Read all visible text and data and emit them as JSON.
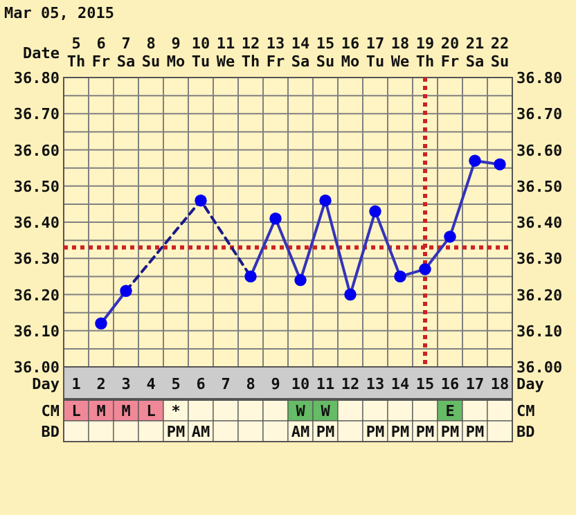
{
  "chart_data": [
    {
      "type": "line",
      "title": "Mar 05, 2015",
      "xlabel": "Day",
      "x2label": "Date",
      "xlim": [
        0.5,
        18.5
      ],
      "xticks": [
        1,
        2,
        3,
        4,
        5,
        6,
        7,
        8,
        9,
        10,
        11,
        12,
        13,
        14,
        15,
        16,
        17,
        18
      ],
      "x2lim": [
        "2015-03-04T12:00",
        "2015-03-22T12:00"
      ],
      "x2ticks": [
        {
          "value": "2015-03-05",
          "label": "5\nTh"
        },
        {
          "value": "2015-03-06",
          "label": "6\nFr"
        },
        {
          "value": "2015-03-07",
          "label": "7\nSa"
        },
        {
          "value": "2015-03-08",
          "label": "8\nSu"
        },
        {
          "value": "2015-03-09",
          "label": "9\nMo"
        },
        {
          "value": "2015-03-10",
          "label": "10\nTu"
        },
        {
          "value": "2015-03-11",
          "label": "11\nWe"
        },
        {
          "value": "2015-03-12",
          "label": "12\nTh"
        },
        {
          "value": "2015-03-13",
          "label": "13\nFr"
        },
        {
          "value": "2015-03-14",
          "label": "14\nSa"
        },
        {
          "value": "2015-03-15",
          "label": "15\nSu"
        },
        {
          "value": "2015-03-16",
          "label": "16\nMo"
        },
        {
          "value": "2015-03-17",
          "label": "17\nTu"
        },
        {
          "value": "2015-03-18",
          "label": "18\nWe"
        },
        {
          "value": "2015-03-19",
          "label": "19\nTh"
        },
        {
          "value": "2015-03-20",
          "label": "20\nFr"
        },
        {
          "value": "2015-03-21",
          "label": "21\nSa"
        },
        {
          "value": "2015-03-22",
          "label": "22\nSu"
        }
      ],
      "ylim": [
        36.0,
        36.8
      ],
      "yticks": [
        {
          "value": 36.0,
          "label": "36.00"
        },
        {
          "value": 36.05,
          "label": null
        },
        {
          "value": 36.1,
          "label": "36.10"
        },
        {
          "value": 36.15,
          "label": null
        },
        {
          "value": 36.2,
          "label": "36.20"
        },
        {
          "value": 36.25,
          "label": null
        },
        {
          "value": 36.3,
          "label": "36.30"
        },
        {
          "value": 36.35,
          "label": null
        },
        {
          "value": 36.4,
          "label": "36.40"
        },
        {
          "value": 36.45,
          "label": null
        },
        {
          "value": 36.5,
          "label": "36.50"
        },
        {
          "value": 36.55,
          "label": null
        },
        {
          "value": 36.6,
          "label": "36.60"
        },
        {
          "value": 36.65,
          "label": null
        },
        {
          "value": 36.7,
          "label": "36.70"
        },
        {
          "value": 36.75,
          "label": null
        },
        {
          "value": 36.8,
          "label": "36.80"
        }
      ],
      "y2lim": [
        36.0,
        36.8
      ],
      "y2ticks": [
        {
          "value": 36.0,
          "label": "36.00"
        },
        {
          "value": 36.1,
          "label": "36.10"
        },
        {
          "value": 36.2,
          "label": "36.20"
        },
        {
          "value": 36.3,
          "label": "36.30"
        },
        {
          "value": 36.4,
          "label": "36.40"
        },
        {
          "value": 36.5,
          "label": "36.50"
        },
        {
          "value": 36.6,
          "label": "36.60"
        },
        {
          "value": 36.7,
          "label": "36.70"
        },
        {
          "value": 36.8,
          "label": "36.80"
        }
      ],
      "grid": true,
      "series": [
        {
          "type": "line",
          "color": "#3333bb",
          "line_style": "solid",
          "marker": "none",
          "x": [
            2,
            3,
            4,
            8,
            9,
            10,
            11,
            12,
            13,
            14,
            15,
            16,
            17,
            18
          ],
          "values": [
            36.12,
            36.21,
            null,
            36.25,
            36.41,
            36.24,
            36.46,
            36.2,
            36.43,
            36.25,
            36.27,
            36.36,
            36.57,
            36.56
          ]
        },
        {
          "type": "line",
          "color": "#1a1a88",
          "line_style": "dashed",
          "marker": "none",
          "x": [
            3,
            6,
            8
          ],
          "values": [
            36.21,
            36.46,
            36.25
          ]
        },
        {
          "type": "scatter",
          "color": "#0000ee",
          "marker": "circle",
          "x": [
            2,
            3,
            6,
            8,
            9,
            10,
            11,
            12,
            13,
            14,
            15,
            16,
            17,
            18
          ],
          "values": [
            36.12,
            36.21,
            36.46,
            36.25,
            36.41,
            36.24,
            36.46,
            36.2,
            36.43,
            36.25,
            36.27,
            36.36,
            36.57,
            36.56
          ]
        }
      ],
      "ref_lines": [
        {
          "axis": "y",
          "value": 36.33,
          "color": "#cc2222",
          "line_style": "dotted"
        },
        {
          "axis": "x",
          "value": 15,
          "color": "#cc2222",
          "line_style": "dotted"
        }
      ]
    },
    {
      "type": "heatmap",
      "categories": [
        null,
        null,
        null,
        null,
        null,
        null,
        null,
        null,
        null,
        null,
        null,
        null,
        null,
        null,
        null,
        null,
        null,
        null
      ],
      "y_categories": [
        "CM",
        "BD"
      ],
      "y2_categories": [
        "CM",
        "BD"
      ],
      "tick_labels": "y",
      "cells": [
        [
          null,
          null,
          null,
          null,
          null,
          null,
          null,
          null,
          null,
          null,
          null,
          null,
          null,
          null,
          null,
          null,
          null,
          null
        ],
        [
          null,
          null,
          null,
          null,
          null,
          null,
          null,
          null,
          null,
          null,
          null,
          null,
          null,
          null,
          null,
          null,
          null,
          null
        ]
      ],
      "cell_labels": [
        [
          "L",
          "M",
          "M",
          "L",
          "*",
          null,
          null,
          null,
          null,
          "W",
          "W",
          null,
          null,
          null,
          null,
          "E",
          null,
          null
        ],
        [
          null,
          null,
          null,
          null,
          "PM",
          "AM",
          null,
          null,
          null,
          "AM",
          "PM",
          null,
          "PM",
          "PM",
          "PM",
          "PM",
          "PM",
          null
        ]
      ],
      "colors": [
        [
          "#f08898",
          "#f08898",
          "#f08898",
          "#f08898",
          "#fff8dc",
          "#fff8dc",
          "#fff8dc",
          "#fff8dc",
          "#fff8dc",
          "#66bb66",
          "#66bb66",
          "#fff8dc",
          "#fff8dc",
          "#fff8dc",
          "#fff8dc",
          "#66bb66",
          "#fff8dc",
          "#fff8dc"
        ],
        [
          "#fff8dc",
          "#fff8dc",
          "#fff8dc",
          "#fff8dc",
          "#fff8dc",
          "#fff8dc",
          "#fff8dc",
          "#fff8dc",
          "#fff8dc",
          "#fff8dc",
          "#fff8dc",
          "#fff8dc",
          "#fff8dc",
          "#fff8dc",
          "#fff8dc",
          "#fff8dc",
          "#fff8dc",
          "#fff8dc"
        ]
      ]
    }
  ]
}
